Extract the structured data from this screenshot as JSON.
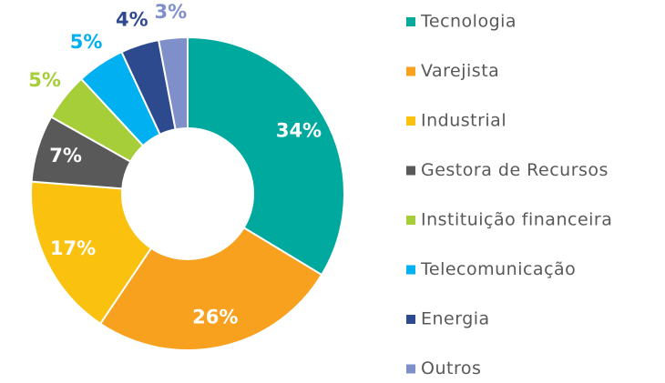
{
  "chart_data": {
    "type": "donut",
    "categories": [
      "Tecnologia",
      "Varejista",
      "Industrial",
      "Gestora de Recursos",
      "Instituição financeira",
      "Telecomunicação",
      "Energia",
      "Outros"
    ],
    "values": [
      34,
      26,
      17,
      7,
      5,
      5,
      4,
      3
    ],
    "value_labels": [
      "34%",
      "26%",
      "17%",
      "7%",
      "5%",
      "5%",
      "4%",
      "3%"
    ],
    "colors": [
      "#00a99d",
      "#f7a11f",
      "#fbc10f",
      "#595959",
      "#a6ce39",
      "#00b0f0",
      "#2e4a8f",
      "#7f8fc9"
    ],
    "legend": "right"
  }
}
